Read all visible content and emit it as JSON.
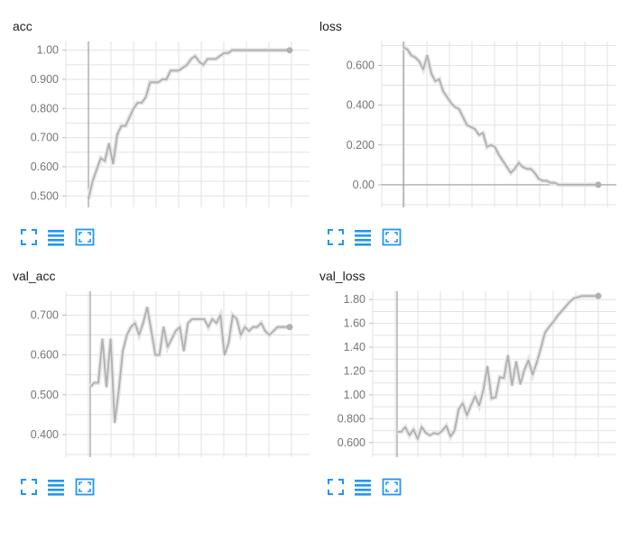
{
  "colors": {
    "line": "#b0b0b0",
    "line_faint": "#e6e6e6",
    "axis": "#9e9e9e",
    "grid": "#e0e0e0",
    "icon": "#2196f3",
    "text": "#212121",
    "tick": "#757575"
  },
  "icons": {
    "fit": "fit-domain-icon",
    "log": "log-scale-icon",
    "expand": "expand-icon"
  },
  "chart_data": [
    {
      "type": "line",
      "title": "acc",
      "ylim": [
        0.47,
        1.03
      ],
      "yticks": [
        0.5,
        0.6,
        0.7,
        0.8,
        0.9,
        1.0
      ],
      "ytick_labels": [
        "0.500",
        "0.600",
        "0.700",
        "0.800",
        "0.900",
        "1.00"
      ],
      "grid": true,
      "series": [
        {
          "x": [
            0,
            1,
            2,
            3,
            4,
            5,
            6,
            7,
            8,
            9,
            10,
            11,
            12,
            13,
            14,
            15,
            16,
            17,
            18,
            19,
            20,
            21,
            22,
            23,
            24,
            25,
            26,
            27,
            28,
            29,
            30,
            31,
            32,
            33,
            34,
            35,
            36,
            37,
            38,
            39,
            40,
            41,
            42,
            43,
            44,
            45,
            46,
            47,
            48,
            49
          ],
          "values": [
            0.49,
            0.55,
            0.59,
            0.63,
            0.62,
            0.68,
            0.61,
            0.71,
            0.74,
            0.74,
            0.77,
            0.8,
            0.82,
            0.82,
            0.84,
            0.89,
            0.89,
            0.89,
            0.9,
            0.9,
            0.93,
            0.93,
            0.93,
            0.94,
            0.95,
            0.97,
            0.98,
            0.96,
            0.95,
            0.97,
            0.97,
            0.97,
            0.98,
            0.99,
            0.99,
            1.0,
            1.0,
            1.0,
            1.0,
            1.0,
            1.0,
            1.0,
            1.0,
            1.0,
            1.0,
            1.0,
            1.0,
            1.0,
            1.0,
            1.0
          ]
        }
      ]
    },
    {
      "type": "line",
      "title": "loss",
      "ylim": [
        -0.1,
        0.72
      ],
      "yticks": [
        0,
        0.2,
        0.4,
        0.6
      ],
      "ytick_labels": [
        "0.00",
        "0.200",
        "0.400",
        "0.600"
      ],
      "grid": true,
      "series": [
        {
          "x": [
            0,
            1,
            2,
            3,
            4,
            5,
            6,
            7,
            8,
            9,
            10,
            11,
            12,
            13,
            14,
            15,
            16,
            17,
            18,
            19,
            20,
            21,
            22,
            23,
            24,
            25,
            26,
            27,
            28,
            29,
            30,
            31,
            32,
            33,
            34,
            35,
            36,
            37,
            38,
            39,
            40,
            41,
            42,
            43,
            44,
            45,
            46,
            47,
            48,
            49
          ],
          "values": [
            0.69,
            0.68,
            0.65,
            0.64,
            0.62,
            0.58,
            0.65,
            0.56,
            0.52,
            0.53,
            0.47,
            0.44,
            0.41,
            0.39,
            0.38,
            0.34,
            0.3,
            0.29,
            0.28,
            0.25,
            0.26,
            0.19,
            0.2,
            0.19,
            0.15,
            0.12,
            0.09,
            0.06,
            0.08,
            0.11,
            0.09,
            0.08,
            0.08,
            0.06,
            0.03,
            0.02,
            0.02,
            0.01,
            0.01,
            0.0,
            0.0,
            0.0,
            0.0,
            0.0,
            0.0,
            0.0,
            0.0,
            0.0,
            0.0,
            0.0
          ]
        }
      ]
    },
    {
      "type": "line",
      "title": "val_acc",
      "ylim": [
        0.35,
        0.76
      ],
      "yticks": [
        0.4,
        0.5,
        0.6,
        0.7
      ],
      "ytick_labels": [
        "0.400",
        "0.500",
        "0.600",
        "0.700"
      ],
      "grid": true,
      "series": [
        {
          "x": [
            0,
            1,
            2,
            3,
            4,
            5,
            6,
            7,
            8,
            9,
            10,
            11,
            12,
            13,
            14,
            15,
            16,
            17,
            18,
            19,
            20,
            21,
            22,
            23,
            24,
            25,
            26,
            27,
            28,
            29,
            30,
            31,
            32,
            33,
            34,
            35,
            36,
            37,
            38,
            39,
            40,
            41,
            42,
            43,
            44,
            45,
            46,
            47,
            48,
            49
          ],
          "values": [
            0.52,
            0.53,
            0.53,
            0.64,
            0.52,
            0.64,
            0.43,
            0.51,
            0.61,
            0.65,
            0.67,
            0.68,
            0.65,
            0.68,
            0.72,
            0.66,
            0.6,
            0.6,
            0.67,
            0.62,
            0.64,
            0.66,
            0.67,
            0.61,
            0.68,
            0.69,
            0.69,
            0.69,
            0.69,
            0.67,
            0.69,
            0.68,
            0.7,
            0.6,
            0.63,
            0.7,
            0.69,
            0.65,
            0.67,
            0.66,
            0.67,
            0.67,
            0.68,
            0.66,
            0.65,
            0.66,
            0.67,
            0.67,
            0.67,
            0.67
          ]
        }
      ]
    },
    {
      "type": "line",
      "title": "val_loss",
      "ylim": [
        0.5,
        1.87
      ],
      "yticks": [
        0.6,
        0.8,
        1.0,
        1.2,
        1.4,
        1.6,
        1.8
      ],
      "ytick_labels": [
        "0.600",
        "0.800",
        "1.00",
        "1.20",
        "1.40",
        "1.60",
        "1.80"
      ],
      "grid": true,
      "series": [
        {
          "x": [
            0,
            1,
            2,
            3,
            4,
            5,
            6,
            7,
            8,
            9,
            10,
            11,
            12,
            13,
            14,
            15,
            16,
            17,
            18,
            19,
            20,
            21,
            22,
            23,
            24,
            25,
            26,
            27,
            28,
            29,
            30,
            31,
            32,
            33,
            34,
            35,
            36,
            37,
            38,
            39,
            40,
            41,
            42,
            43,
            44,
            45,
            46,
            47,
            48,
            49
          ],
          "values": [
            0.69,
            0.69,
            0.73,
            0.66,
            0.71,
            0.63,
            0.73,
            0.68,
            0.66,
            0.68,
            0.67,
            0.7,
            0.74,
            0.65,
            0.7,
            0.88,
            0.93,
            0.83,
            0.91,
            0.99,
            0.91,
            1.04,
            1.24,
            0.97,
            0.98,
            1.15,
            1.14,
            1.33,
            1.08,
            1.28,
            1.09,
            1.21,
            1.29,
            1.17,
            1.27,
            1.39,
            1.52,
            1.57,
            1.61,
            1.66,
            1.7,
            1.74,
            1.78,
            1.81,
            1.82,
            1.83,
            1.83,
            1.83,
            1.83,
            1.83
          ]
        }
      ]
    }
  ]
}
